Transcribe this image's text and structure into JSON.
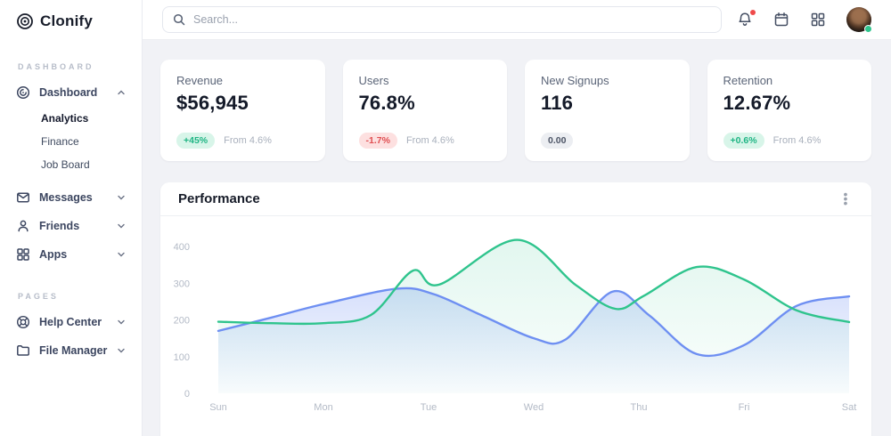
{
  "brand": {
    "name": "Clonify"
  },
  "sidebar": {
    "sections": [
      {
        "label": "DASHBOARD",
        "items": [
          {
            "label": "Dashboard",
            "icon": "disc-icon",
            "expanded": true,
            "children": [
              {
                "label": "Analytics",
                "active": true
              },
              {
                "label": "Finance",
                "active": false
              },
              {
                "label": "Job Board",
                "active": false
              }
            ]
          },
          {
            "label": "Messages",
            "icon": "mail-icon",
            "expanded": false
          },
          {
            "label": "Friends",
            "icon": "user-icon",
            "expanded": false
          },
          {
            "label": "Apps",
            "icon": "grid-icon",
            "expanded": false
          }
        ]
      },
      {
        "label": "PAGES",
        "items": [
          {
            "label": "Help Center",
            "icon": "lifebuoy-icon",
            "expanded": false
          },
          {
            "label": "File Manager",
            "icon": "folder-icon",
            "expanded": false
          }
        ]
      }
    ]
  },
  "topbar": {
    "search_placeholder": "Search...",
    "has_notification": true
  },
  "stats": [
    {
      "label": "Revenue",
      "value": "$56,945",
      "badge": "+45%",
      "badge_type": "positive",
      "note": "From 4.6%"
    },
    {
      "label": "Users",
      "value": "76.8%",
      "badge": "-1.7%",
      "badge_type": "negative",
      "note": "From 4.6%"
    },
    {
      "label": "New Signups",
      "value": "116",
      "badge": "0.00",
      "badge_type": "neutral",
      "note": ""
    },
    {
      "label": "Retention",
      "value": "12.67%",
      "badge": "+0.6%",
      "badge_type": "positive",
      "note": "From 4.6%"
    }
  ],
  "chart_data": {
    "type": "area",
    "title": "Performance",
    "x_labels": [
      "Sun",
      "Mon",
      "Tue",
      "Wed",
      "Thu",
      "Fri",
      "Sat"
    ],
    "y_ticks": [
      0,
      100,
      200,
      300,
      400
    ],
    "ylim": [
      0,
      440
    ],
    "grid": false,
    "legend": "none",
    "series": [
      {
        "name": "series-blue",
        "color": "#6e8ff2",
        "area_opacity_top": 0.28,
        "points": [
          [
            0,
            170
          ],
          [
            0.5,
            206
          ],
          [
            1,
            243
          ],
          [
            1.7,
            285
          ],
          [
            2.05,
            270
          ],
          [
            2.5,
            213
          ],
          [
            3.0,
            150
          ],
          [
            3.3,
            146
          ],
          [
            3.75,
            277
          ],
          [
            4.1,
            212
          ],
          [
            4.55,
            107
          ],
          [
            5.0,
            131
          ],
          [
            5.5,
            238
          ],
          [
            6.0,
            264
          ]
        ]
      },
      {
        "name": "series-green",
        "color": "#2fc48d",
        "area_opacity_top": 0.14,
        "points": [
          [
            0,
            195
          ],
          [
            0.5,
            191
          ],
          [
            1,
            191
          ],
          [
            1.45,
            213
          ],
          [
            1.85,
            334
          ],
          [
            2.1,
            296
          ],
          [
            2.84,
            418
          ],
          [
            3.4,
            295
          ],
          [
            3.78,
            230
          ],
          [
            4.05,
            266
          ],
          [
            4.55,
            344
          ],
          [
            5.0,
            310
          ],
          [
            5.5,
            226
          ],
          [
            6.0,
            194
          ]
        ]
      }
    ]
  },
  "colors": {
    "accent_green": "#2fc48d",
    "accent_blue": "#6e8ff2",
    "positive_bg": "#d8f5e9",
    "positive_text": "#1fb584",
    "negative_bg": "#fde0e0",
    "negative_text": "#e04f52",
    "axis_text": "#b3bac6",
    "notification_red": "#ef4a4a"
  }
}
